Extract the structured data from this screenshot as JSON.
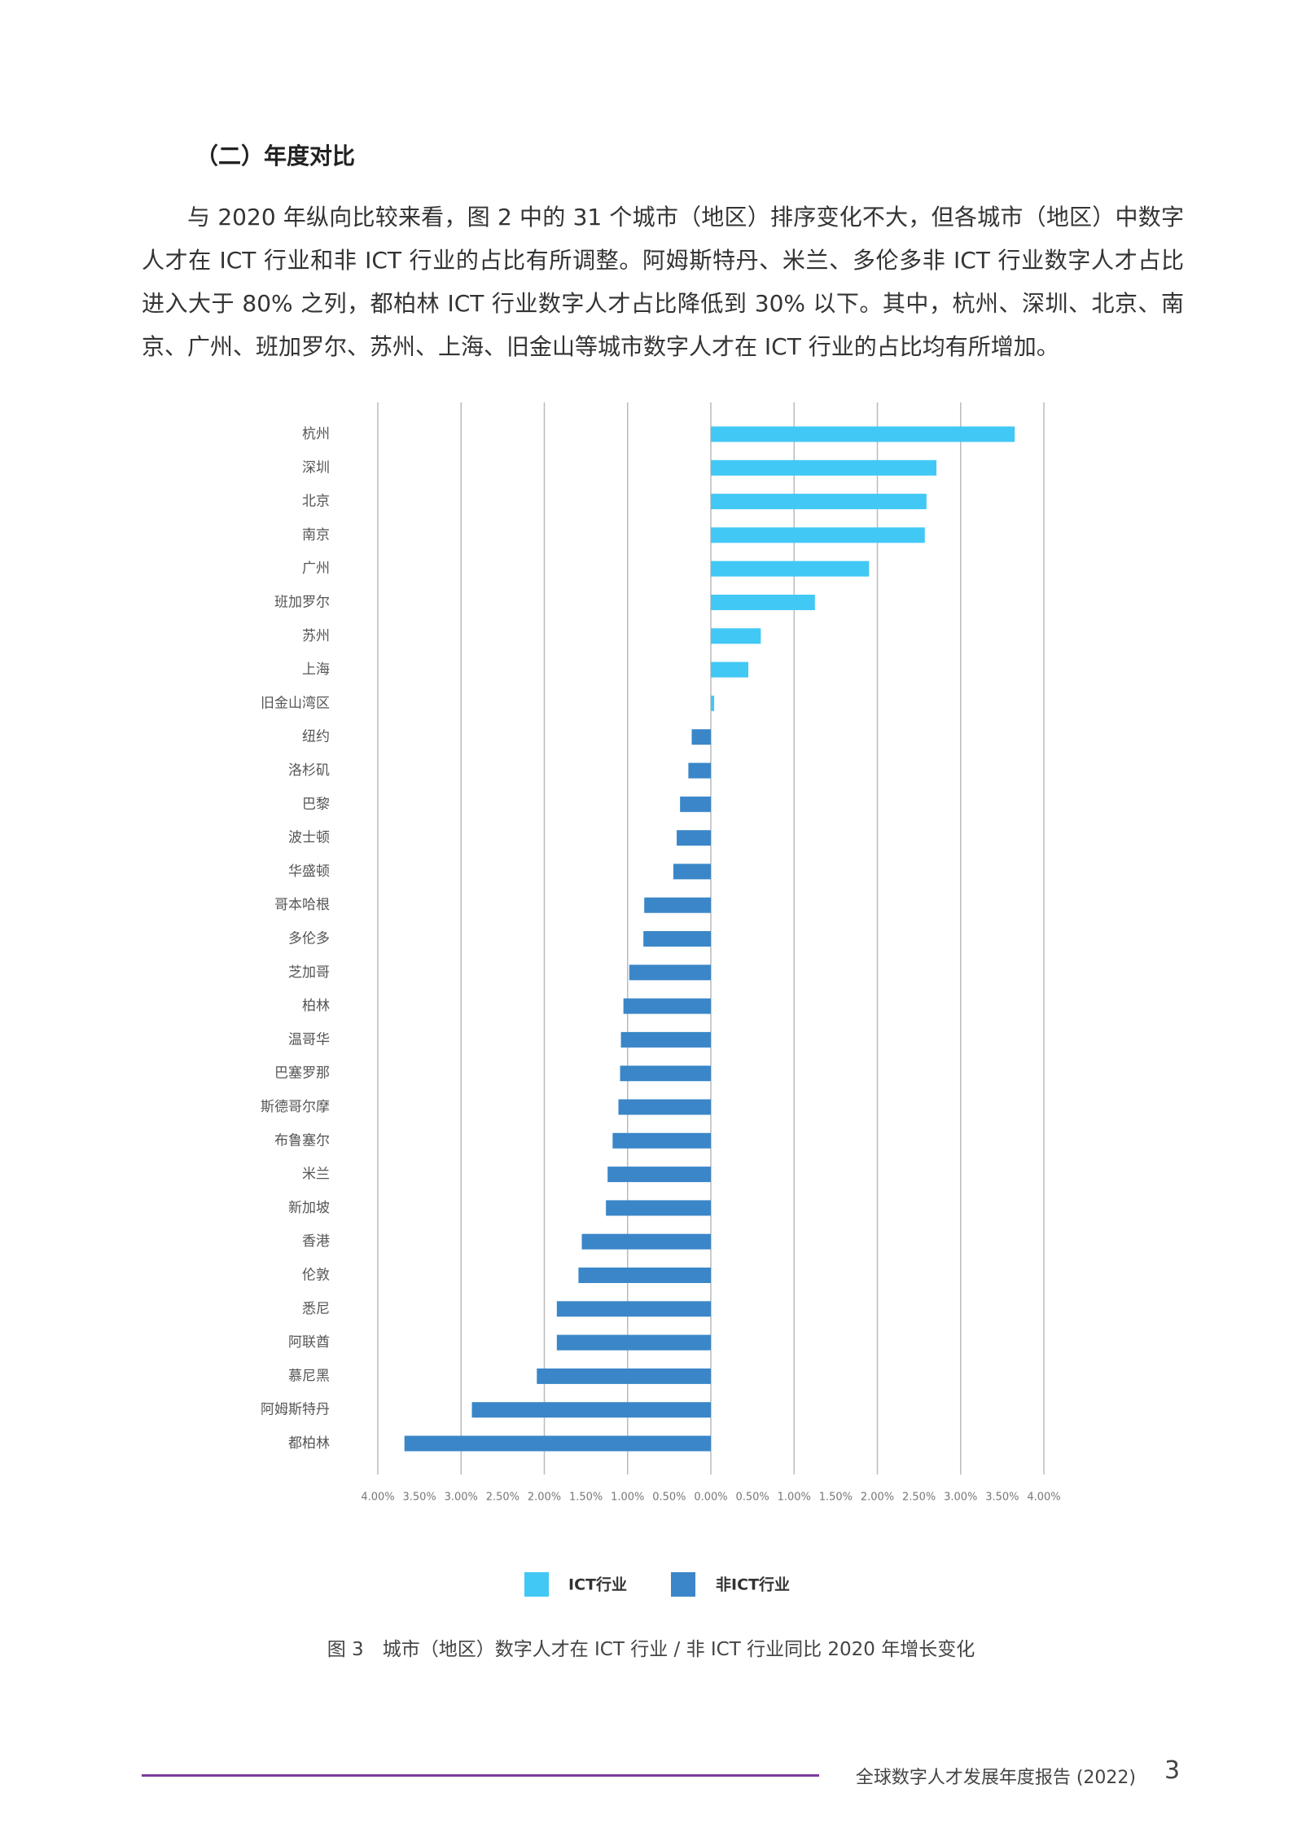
{
  "section_title": "（二）年度对比",
  "paragraph": "与 2020 年纵向比较来看，图 2 中的 31 个城市（地区）排序变化不大，但各城市（地区）中数字人才在 ICT 行业和非 ICT 行业的占比有所调整。阿姆斯特丹、米兰、多伦多非 ICT 行业数字人才占比进入大于 80% 之列，都柏林 ICT 行业数字人才占比降低到 30% 以下。其中，杭州、深圳、北京、南京、广州、班加罗尔、苏州、上海、旧金山等城市数字人才在 ICT 行业的占比均有所增加。",
  "chart_data": {
    "type": "diverging-bar",
    "orientation": "horizontal",
    "categories": [
      "杭州",
      "深圳",
      "北京",
      "南京",
      "广州",
      "班加罗尔",
      "苏州",
      "上海",
      "旧金山湾区",
      "纽约",
      "洛杉矶",
      "巴黎",
      "波士顿",
      "华盛顿",
      "哥本哈根",
      "多伦多",
      "芝加哥",
      "柏林",
      "温哥华",
      "巴塞罗那",
      "斯德哥尔摩",
      "布鲁塞尔",
      "米兰",
      "新加坡",
      "香港",
      "伦敦",
      "悉尼",
      "阿联酋",
      "慕尼黑",
      "阿姆斯特丹",
      "都柏林"
    ],
    "series": [
      {
        "name": "ICT行业",
        "color": "#41c8f5",
        "values": [
          3.65,
          2.71,
          2.59,
          2.57,
          1.9,
          1.25,
          0.6,
          0.45,
          0.04,
          null,
          null,
          null,
          null,
          null,
          null,
          null,
          null,
          null,
          null,
          null,
          null,
          null,
          null,
          null,
          null,
          null,
          null,
          null,
          null,
          null,
          null
        ]
      },
      {
        "name": "非ICT行业",
        "color": "#3a86c8",
        "values": [
          null,
          null,
          null,
          null,
          null,
          null,
          null,
          null,
          null,
          -0.23,
          -0.27,
          -0.37,
          -0.41,
          -0.45,
          -0.8,
          -0.81,
          -0.98,
          -1.05,
          -1.08,
          -1.09,
          -1.11,
          -1.18,
          -1.24,
          -1.26,
          -1.55,
          -1.59,
          -1.85,
          -1.85,
          -2.09,
          -2.87,
          -3.68
        ]
      }
    ],
    "xlim": [
      -4,
      4
    ],
    "xticks": [
      {
        "value": -4,
        "label": "4.00%"
      },
      {
        "value": -3.5,
        "label": "3.50%"
      },
      {
        "value": -3,
        "label": "3.00%"
      },
      {
        "value": -2.5,
        "label": "2.50%"
      },
      {
        "value": -2,
        "label": "2.00%"
      },
      {
        "value": -1.5,
        "label": "1.50%"
      },
      {
        "value": -1,
        "label": "1.00%"
      },
      {
        "value": -0.5,
        "label": "0.50%"
      },
      {
        "value": 0,
        "label": "0.00%"
      },
      {
        "value": 0.5,
        "label": "0.50%"
      },
      {
        "value": 1,
        "label": "1.00%"
      },
      {
        "value": 1.5,
        "label": "1.50%"
      },
      {
        "value": 2,
        "label": "2.00%"
      },
      {
        "value": 2.5,
        "label": "2.50%"
      },
      {
        "value": 3,
        "label": "3.00%"
      },
      {
        "value": 3.5,
        "label": "3.50%"
      },
      {
        "value": 4,
        "label": "4.00%"
      }
    ],
    "grid": true,
    "legend": "bottom"
  },
  "caption": "图 3　城市（地区）数字人才在 ICT 行业 / 非 ICT 行业同比 2020 年增长变化",
  "footer": {
    "title": "全球数字人才发展年度报告 (2022)",
    "page": 3
  }
}
